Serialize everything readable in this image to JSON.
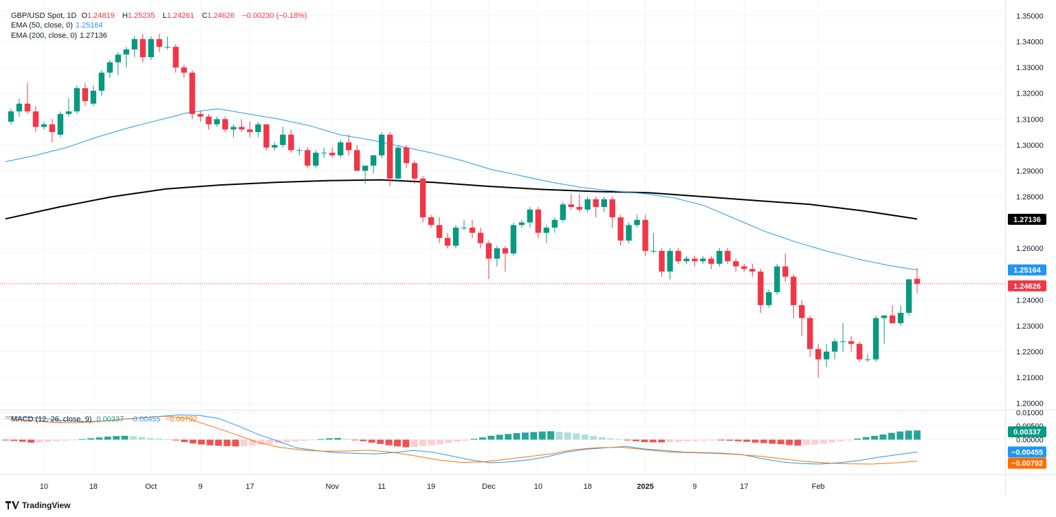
{
  "legend": {
    "symbol": "GBP/USD Spot, 1D",
    "o_label": "O",
    "o": "1.24819",
    "h_label": "H",
    "h": "1.25235",
    "l_label": "L",
    "l": "1.24261",
    "c_label": "C",
    "c": "1.24626",
    "change": "−0.00230 (−0.18%)",
    "ema50_label": "EMA (50, close, 0)",
    "ema50": "1.25164",
    "ema200_label": "EMA (200, close, 0)",
    "ema200": "1.27136",
    "macd_label": "MACD (12, 26, close, 9)",
    "macd_hist": "0.00337",
    "macd_line": "−0.00455",
    "macd_signal": "−0.00792"
  },
  "brand": "TradingView",
  "colors": {
    "up": "#089981",
    "down": "#f23645",
    "ema50": "#2196f3",
    "ema200": "#000000",
    "macd": "#2196f3",
    "signal": "#ff6d00",
    "hist_up": "#26a69a",
    "hist_up_light": "#b2dfdb",
    "hist_down": "#ef5350",
    "hist_down_light": "#ffcdd2"
  },
  "chart_data": {
    "type": "candlestick",
    "price_axis_labels": [
      "1.35000",
      "1.34000",
      "1.33000",
      "1.32000",
      "1.31000",
      "1.30000",
      "1.29000",
      "1.28000",
      "1.26000",
      "1.24000",
      "1.23000",
      "1.22000",
      "1.21000",
      "1.20000"
    ],
    "price_ylim": [
      1.1975,
      1.354
    ],
    "macd_axis_labels": [
      "0.01000",
      "0.00500",
      "0.00000"
    ],
    "macd_ylim": [
      -0.0128,
      0.0105
    ],
    "time_labels": [
      "10",
      "18",
      "Oct",
      "9",
      "17",
      "Nov",
      "11",
      "19",
      "Dec",
      "10",
      "18",
      "2025",
      "9",
      "17",
      "Feb"
    ],
    "time_label_bars": [
      4,
      10,
      17,
      23,
      29,
      39,
      45,
      51,
      58,
      64,
      70,
      77,
      83,
      89,
      98
    ],
    "last_price": "1.24626",
    "last_price_value": 1.24626,
    "ema50_tag": "1.25164",
    "ema200_tag": "1.27136",
    "macd_hist_tag": "0.00337",
    "macd_line_tag": "−0.00455",
    "macd_signal_tag": "−0.00792",
    "candles": [
      [
        1.309,
        1.314,
        1.308,
        1.313
      ],
      [
        1.313,
        1.318,
        1.311,
        1.316
      ],
      [
        1.316,
        1.324,
        1.312,
        1.313
      ],
      [
        1.313,
        1.315,
        1.305,
        1.307
      ],
      [
        1.307,
        1.309,
        1.306,
        1.308
      ],
      [
        1.308,
        1.31,
        1.301,
        1.305
      ],
      [
        1.304,
        1.313,
        1.303,
        1.312
      ],
      [
        1.312,
        1.318,
        1.311,
        1.313
      ],
      [
        1.313,
        1.323,
        1.312,
        1.322
      ],
      [
        1.322,
        1.324,
        1.315,
        1.317
      ],
      [
        1.316,
        1.323,
        1.315,
        1.321
      ],
      [
        1.321,
        1.329,
        1.319,
        1.328
      ],
      [
        1.328,
        1.333,
        1.326,
        1.332
      ],
      [
        1.332,
        1.336,
        1.327,
        1.335
      ],
      [
        1.335,
        1.338,
        1.33,
        1.337
      ],
      [
        1.337,
        1.342,
        1.334,
        1.341
      ],
      [
        1.341,
        1.343,
        1.332,
        1.334
      ],
      [
        1.334,
        1.342,
        1.333,
        1.341
      ],
      [
        1.341,
        1.343,
        1.336,
        1.338
      ],
      [
        1.338,
        1.342,
        1.337,
        1.338
      ],
      [
        1.338,
        1.339,
        1.328,
        1.33
      ],
      [
        1.33,
        1.331,
        1.326,
        1.328
      ],
      [
        1.328,
        1.329,
        1.31,
        1.312
      ],
      [
        1.312,
        1.313,
        1.309,
        1.311
      ],
      [
        1.311,
        1.312,
        1.306,
        1.308
      ],
      [
        1.308,
        1.311,
        1.307,
        1.31
      ],
      [
        1.31,
        1.311,
        1.305,
        1.306
      ],
      [
        1.306,
        1.308,
        1.303,
        1.307
      ],
      [
        1.307,
        1.31,
        1.305,
        1.306
      ],
      [
        1.306,
        1.309,
        1.303,
        1.305
      ],
      [
        1.305,
        1.309,
        1.303,
        1.308
      ],
      [
        1.308,
        1.308,
        1.298,
        1.299
      ],
      [
        1.299,
        1.301,
        1.298,
        1.3
      ],
      [
        1.3,
        1.307,
        1.299,
        1.304
      ],
      [
        1.304,
        1.306,
        1.297,
        1.298
      ],
      [
        1.298,
        1.299,
        1.296,
        1.298
      ],
      [
        1.298,
        1.299,
        1.291,
        1.292
      ],
      [
        1.292,
        1.298,
        1.291,
        1.297
      ],
      [
        1.297,
        1.299,
        1.295,
        1.297
      ],
      [
        1.297,
        1.299,
        1.295,
        1.296
      ],
      [
        1.296,
        1.302,
        1.295,
        1.301
      ],
      [
        1.301,
        1.304,
        1.296,
        1.298
      ],
      [
        1.298,
        1.3,
        1.29,
        1.29
      ],
      [
        1.29,
        1.292,
        1.285,
        1.292
      ],
      [
        1.292,
        1.296,
        1.289,
        1.296
      ],
      [
        1.296,
        1.305,
        1.295,
        1.304
      ],
      [
        1.304,
        1.305,
        1.284,
        1.287
      ],
      [
        1.287,
        1.3,
        1.286,
        1.299
      ],
      [
        1.299,
        1.3,
        1.291,
        1.293
      ],
      [
        1.293,
        1.294,
        1.285,
        1.287
      ],
      [
        1.287,
        1.288,
        1.27,
        1.272
      ],
      [
        1.272,
        1.273,
        1.268,
        1.269
      ],
      [
        1.269,
        1.272,
        1.262,
        1.264
      ],
      [
        1.264,
        1.266,
        1.26,
        1.261
      ],
      [
        1.261,
        1.269,
        1.26,
        1.268
      ],
      [
        1.268,
        1.271,
        1.267,
        1.268
      ],
      [
        1.268,
        1.271,
        1.264,
        1.266
      ],
      [
        1.266,
        1.268,
        1.26,
        1.262
      ],
      [
        1.262,
        1.263,
        1.248,
        1.256
      ],
      [
        1.256,
        1.261,
        1.253,
        1.26
      ],
      [
        1.26,
        1.261,
        1.251,
        1.258
      ],
      [
        1.258,
        1.27,
        1.257,
        1.269
      ],
      [
        1.269,
        1.271,
        1.268,
        1.27
      ],
      [
        1.27,
        1.276,
        1.268,
        1.275
      ],
      [
        1.275,
        1.276,
        1.264,
        1.266
      ],
      [
        1.266,
        1.269,
        1.262,
        1.268
      ],
      [
        1.268,
        1.272,
        1.266,
        1.271
      ],
      [
        1.271,
        1.278,
        1.27,
        1.277
      ],
      [
        1.277,
        1.281,
        1.275,
        1.276
      ],
      [
        1.276,
        1.281,
        1.274,
        1.275
      ],
      [
        1.275,
        1.28,
        1.274,
        1.279
      ],
      [
        1.279,
        1.28,
        1.272,
        1.276
      ],
      [
        1.276,
        1.28,
        1.274,
        1.279
      ],
      [
        1.279,
        1.28,
        1.268,
        1.272
      ],
      [
        1.272,
        1.273,
        1.261,
        1.263
      ],
      [
        1.263,
        1.27,
        1.262,
        1.269
      ],
      [
        1.269,
        1.273,
        1.268,
        1.271
      ],
      [
        1.271,
        1.273,
        1.257,
        1.259
      ],
      [
        1.259,
        1.266,
        1.258,
        1.259
      ],
      [
        1.259,
        1.26,
        1.249,
        1.251
      ],
      [
        1.251,
        1.26,
        1.248,
        1.259
      ],
      [
        1.259,
        1.26,
        1.254,
        1.255
      ],
      [
        1.255,
        1.257,
        1.254,
        1.256
      ],
      [
        1.256,
        1.257,
        1.253,
        1.255
      ],
      [
        1.255,
        1.257,
        1.254,
        1.256
      ],
      [
        1.256,
        1.257,
        1.252,
        1.254
      ],
      [
        1.254,
        1.26,
        1.253,
        1.259
      ],
      [
        1.259,
        1.26,
        1.254,
        1.255
      ],
      [
        1.255,
        1.256,
        1.251,
        1.253
      ],
      [
        1.253,
        1.254,
        1.251,
        1.252
      ],
      [
        1.252,
        1.254,
        1.249,
        1.251
      ],
      [
        1.251,
        1.252,
        1.235,
        1.238
      ],
      [
        1.238,
        1.244,
        1.237,
        1.243
      ],
      [
        1.243,
        1.254,
        1.242,
        1.253
      ],
      [
        1.253,
        1.258,
        1.247,
        1.249
      ],
      [
        1.249,
        1.25,
        1.233,
        1.238
      ],
      [
        1.238,
        1.24,
        1.226,
        1.233
      ],
      [
        1.233,
        1.234,
        1.218,
        1.221
      ],
      [
        1.221,
        1.223,
        1.21,
        1.217
      ],
      [
        1.217,
        1.223,
        1.214,
        1.22
      ],
      [
        1.22,
        1.225,
        1.217,
        1.224
      ],
      [
        1.224,
        1.231,
        1.22,
        1.224
      ],
      [
        1.224,
        1.226,
        1.22,
        1.223
      ],
      [
        1.223,
        1.224,
        1.216,
        1.217
      ],
      [
        1.217,
        1.219,
        1.216,
        1.217
      ],
      [
        1.217,
        1.234,
        1.216,
        1.233
      ],
      [
        1.233,
        1.234,
        1.223,
        1.234
      ],
      [
        1.234,
        1.238,
        1.231,
        1.231
      ],
      [
        1.231,
        1.238,
        1.23,
        1.235
      ],
      [
        1.235,
        1.247,
        1.234,
        1.248
      ],
      [
        1.24819,
        1.25235,
        1.24261,
        1.24626
      ]
    ],
    "ema50": [
      1.2935,
      1.296,
      1.299,
      1.303,
      1.3065,
      1.3095,
      1.3125,
      1.314,
      1.312,
      1.31,
      1.3075,
      1.304,
      1.302,
      1.2995,
      1.297,
      1.294,
      1.2905,
      1.288,
      1.2855,
      1.2835,
      1.2822,
      1.2812,
      1.2795,
      1.2765,
      1.2715,
      1.2665,
      1.2625,
      1.259,
      1.256,
      1.2535,
      1.25164
    ],
    "ema200": [
      1.2714,
      1.276,
      1.28,
      1.283,
      1.2845,
      1.2855,
      1.2862,
      1.2865,
      1.2855,
      1.284,
      1.2828,
      1.282,
      1.2815,
      1.28,
      1.2785,
      1.277,
      1.2745,
      1.27136
    ],
    "macd_hist": [
      -0.0003,
      -0.0005,
      -0.0008,
      -0.0011,
      -0.001,
      -0.0008,
      -0.0006,
      -0.0004,
      -0.0002,
      0.0002,
      0.0005,
      0.0008,
      0.0011,
      0.0013,
      0.0014,
      0.0013,
      0.001,
      0.0006,
      0.0004,
      0.0001,
      -0.0003,
      -0.0009,
      -0.0014,
      -0.0018,
      -0.0021,
      -0.0023,
      -0.0024,
      -0.0025,
      -0.0024,
      -0.0022,
      -0.0019,
      -0.0016,
      -0.0013,
      -0.001,
      -0.0007,
      -0.0004,
      -0.0002,
      0.0002,
      0.0005,
      0.0006,
      0.0003,
      -0.0002,
      -0.0006,
      -0.0011,
      -0.0016,
      -0.0021,
      -0.0025,
      -0.0028,
      -0.0027,
      -0.0024,
      -0.0021,
      -0.0017,
      -0.0012,
      -0.0007,
      -0.0004,
      0.0003,
      0.0008,
      0.0014,
      0.0018,
      0.0021,
      0.0024,
      0.0026,
      0.0028,
      0.003,
      0.0031,
      0.0029,
      0.0026,
      0.0023,
      0.0019,
      0.0014,
      0.0009,
      0.0005,
      0.0002,
      -0.0003,
      -0.0006,
      -0.0009,
      -0.001,
      -0.001,
      -0.0009,
      -0.0008,
      -0.0006,
      -0.0005,
      -0.0004,
      -0.0003,
      -0.0003,
      -0.0004,
      -0.0006,
      -0.0008,
      -0.0011,
      -0.0013,
      -0.0015,
      -0.0017,
      -0.002,
      -0.0022,
      -0.002,
      -0.0018,
      -0.0015,
      -0.001,
      -0.0006,
      -0.0003,
      0.0004,
      0.0009,
      0.0014,
      0.0019,
      0.0025,
      0.003,
      0.0033,
      0.00337
    ],
    "macd_line": [
      0.0085,
      0.0082,
      0.0078,
      0.007,
      0.0066,
      0.0068,
      0.0075,
      0.008,
      0.0086,
      0.0091,
      0.0089,
      0.0078,
      0.005,
      0.002,
      -0.0005,
      -0.003,
      -0.004,
      -0.0048,
      -0.005,
      -0.0053,
      -0.0048,
      -0.004,
      -0.0046,
      -0.006,
      -0.0075,
      -0.0085,
      -0.0082,
      -0.0074,
      -0.0062,
      -0.0045,
      -0.0035,
      -0.003,
      -0.0025,
      -0.0035,
      -0.004,
      -0.0046,
      -0.0048,
      -0.005,
      -0.0055,
      -0.007,
      -0.0082,
      -0.0088,
      -0.009,
      -0.0085,
      -0.0077,
      -0.0065,
      -0.0055,
      -0.00455
    ],
    "macd_signal": [
      0.0078,
      0.0072,
      0.0064,
      0.0062,
      0.0066,
      0.0074,
      0.0081,
      0.0086,
      0.0078,
      0.005,
      0.0022,
      -0.0008,
      -0.0028,
      -0.0038,
      -0.0043,
      -0.0042,
      -0.0039,
      -0.0047,
      -0.006,
      -0.0075,
      -0.0084,
      -0.0082,
      -0.0072,
      -0.0062,
      -0.0052,
      -0.0036,
      -0.003,
      -0.0028,
      -0.0036,
      -0.0045,
      -0.0048,
      -0.005,
      -0.0054,
      -0.006,
      -0.007,
      -0.008,
      -0.0086,
      -0.0089,
      -0.009,
      -0.0086,
      -0.00792
    ]
  }
}
